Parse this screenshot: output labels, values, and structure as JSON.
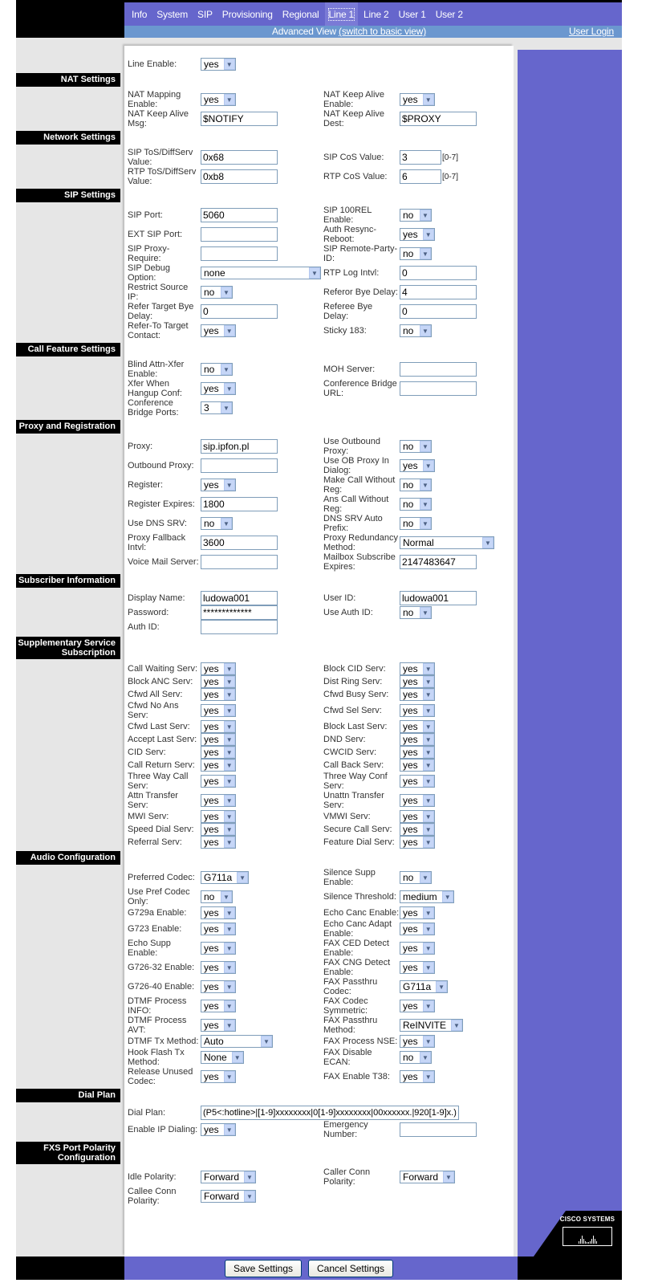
{
  "nav": {
    "tabs": [
      "Info",
      "System",
      "SIP",
      "Provisioning",
      "Regional",
      "Line 1",
      "Line 2",
      "User 1",
      "User 2"
    ],
    "active": "Line 1"
  },
  "subbar": {
    "view_label": "Advanced View",
    "switch_link": "(switch to basic view)",
    "login_link": "User Login"
  },
  "brand": {
    "logo_text": "Cisco Systems"
  },
  "colors": {
    "nav": "#6666cc",
    "subbar": "#6b97cf",
    "section_header": "#000000",
    "background": "#e6e6e6"
  },
  "sections": [
    {
      "title": "",
      "rows": [
        {
          "left": {
            "label": "Line Enable:",
            "type": "select",
            "value": "yes"
          }
        }
      ]
    },
    {
      "title": "NAT Settings",
      "rows": [
        {
          "left": {
            "label": "NAT Mapping Enable:",
            "type": "select",
            "value": "yes"
          },
          "right": {
            "label": "NAT Keep Alive Enable:",
            "type": "select",
            "value": "yes"
          }
        },
        {
          "left": {
            "label": "NAT Keep Alive Msg:",
            "type": "text",
            "value": "$NOTIFY"
          },
          "right": {
            "label": "NAT Keep Alive Dest:",
            "type": "text",
            "value": "$PROXY"
          }
        }
      ]
    },
    {
      "title": "Network Settings",
      "rows": [
        {
          "left": {
            "label": "SIP ToS/DiffServ Value:",
            "type": "text",
            "value": "0x68"
          },
          "right": {
            "label": "SIP CoS Value:",
            "type": "text",
            "value": "3",
            "hint": "[0-7]"
          }
        },
        {
          "left": {
            "label": "RTP ToS/DiffServ Value:",
            "type": "text",
            "value": "0xb8"
          },
          "right": {
            "label": "RTP CoS Value:",
            "type": "text",
            "value": "6",
            "hint": "[0-7]"
          }
        }
      ]
    },
    {
      "title": "SIP Settings",
      "rows": [
        {
          "left": {
            "label": "SIP Port:",
            "type": "text",
            "value": "5060"
          },
          "right": {
            "label": "SIP 100REL Enable:",
            "type": "select",
            "value": "no"
          }
        },
        {
          "left": {
            "label": "EXT SIP Port:",
            "type": "text",
            "value": ""
          },
          "right": {
            "label": "Auth Resync-Reboot:",
            "type": "select",
            "value": "yes"
          }
        },
        {
          "left": {
            "label": "SIP Proxy-Require:",
            "type": "text",
            "value": ""
          },
          "right": {
            "label": "SIP Remote-Party-ID:",
            "type": "select",
            "value": "no"
          }
        },
        {
          "left": {
            "label": "SIP Debug Option:",
            "type": "select",
            "value": "none"
          },
          "right": {
            "label": "RTP Log Intvl:",
            "type": "text",
            "value": "0"
          }
        },
        {
          "left": {
            "label": "Restrict Source IP:",
            "type": "select",
            "value": "no"
          },
          "right": {
            "label": "Referor Bye Delay:",
            "type": "text",
            "value": "4"
          }
        },
        {
          "left": {
            "label": "Refer Target Bye Delay:",
            "type": "text",
            "value": "0"
          },
          "right": {
            "label": "Referee Bye Delay:",
            "type": "text",
            "value": "0"
          }
        },
        {
          "left": {
            "label": "Refer-To Target Contact:",
            "type": "select",
            "value": "yes"
          },
          "right": {
            "label": "Sticky 183:",
            "type": "select",
            "value": "no"
          }
        }
      ]
    },
    {
      "title": "Call Feature Settings",
      "rows": [
        {
          "left": {
            "label": "Blind Attn-Xfer Enable:",
            "type": "select",
            "value": "no"
          },
          "right": {
            "label": "MOH Server:",
            "type": "text",
            "value": ""
          }
        },
        {
          "left": {
            "label": "Xfer When Hangup Conf:",
            "type": "select",
            "value": "yes"
          },
          "right": {
            "label": "Conference Bridge URL:",
            "type": "text",
            "value": ""
          }
        },
        {
          "left": {
            "label": "Conference Bridge Ports:",
            "type": "select",
            "value": "3"
          }
        }
      ]
    },
    {
      "title": "Proxy and Registration",
      "rows": [
        {
          "left": {
            "label": "Proxy:",
            "type": "text",
            "value": "sip.ipfon.pl"
          },
          "right": {
            "label": "Use Outbound Proxy:",
            "type": "select",
            "value": "no"
          }
        },
        {
          "left": {
            "label": "Outbound Proxy:",
            "type": "text",
            "value": ""
          },
          "right": {
            "label": "Use OB Proxy In Dialog:",
            "type": "select",
            "value": "yes"
          }
        },
        {
          "left": {
            "label": "Register:",
            "type": "select",
            "value": "yes"
          },
          "right": {
            "label": "Make Call Without Reg:",
            "type": "select",
            "value": "no"
          }
        },
        {
          "left": {
            "label": "Register Expires:",
            "type": "text",
            "value": "1800"
          },
          "right": {
            "label": "Ans Call Without Reg:",
            "type": "select",
            "value": "no"
          }
        },
        {
          "left": {
            "label": "Use DNS SRV:",
            "type": "select",
            "value": "no"
          },
          "right": {
            "label": "DNS SRV Auto Prefix:",
            "type": "select",
            "value": "no"
          }
        },
        {
          "left": {
            "label": "Proxy Fallback Intvl:",
            "type": "text",
            "value": "3600"
          },
          "right": {
            "label": "Proxy Redundancy Method:",
            "type": "select",
            "value": "Normal"
          }
        },
        {
          "left": {
            "label": "Voice Mail Server:",
            "type": "text",
            "value": ""
          },
          "right": {
            "label": "Mailbox Subscribe Expires:",
            "type": "text",
            "value": "2147483647"
          }
        }
      ]
    },
    {
      "title": "Subscriber Information",
      "rows": [
        {
          "left": {
            "label": "Display Name:",
            "type": "text",
            "value": "ludowa001"
          },
          "right": {
            "label": "User ID:",
            "type": "text",
            "value": "ludowa001"
          }
        },
        {
          "left": {
            "label": "Password:",
            "type": "password",
            "value": "*************"
          },
          "right": {
            "label": "Use Auth ID:",
            "type": "select",
            "value": "no"
          }
        },
        {
          "left": {
            "label": "Auth ID:",
            "type": "text",
            "value": ""
          }
        }
      ]
    },
    {
      "title": "Supplementary Service Subscription",
      "rows": [
        {
          "left": {
            "label": "Call Waiting Serv:",
            "type": "select",
            "value": "yes"
          },
          "right": {
            "label": "Block CID Serv:",
            "type": "select",
            "value": "yes"
          }
        },
        {
          "left": {
            "label": "Block ANC Serv:",
            "type": "select",
            "value": "yes"
          },
          "right": {
            "label": "Dist Ring Serv:",
            "type": "select",
            "value": "yes"
          }
        },
        {
          "left": {
            "label": "Cfwd All Serv:",
            "type": "select",
            "value": "yes"
          },
          "right": {
            "label": "Cfwd Busy Serv:",
            "type": "select",
            "value": "yes"
          }
        },
        {
          "left": {
            "label": "Cfwd No Ans Serv:",
            "type": "select",
            "value": "yes"
          },
          "right": {
            "label": "Cfwd Sel Serv:",
            "type": "select",
            "value": "yes"
          }
        },
        {
          "left": {
            "label": "Cfwd Last Serv:",
            "type": "select",
            "value": "yes"
          },
          "right": {
            "label": "Block Last Serv:",
            "type": "select",
            "value": "yes"
          }
        },
        {
          "left": {
            "label": "Accept Last Serv:",
            "type": "select",
            "value": "yes"
          },
          "right": {
            "label": "DND Serv:",
            "type": "select",
            "value": "yes"
          }
        },
        {
          "left": {
            "label": "CID Serv:",
            "type": "select",
            "value": "yes"
          },
          "right": {
            "label": "CWCID Serv:",
            "type": "select",
            "value": "yes"
          }
        },
        {
          "left": {
            "label": "Call Return Serv:",
            "type": "select",
            "value": "yes"
          },
          "right": {
            "label": "Call Back Serv:",
            "type": "select",
            "value": "yes"
          }
        },
        {
          "left": {
            "label": "Three Way Call Serv:",
            "type": "select",
            "value": "yes"
          },
          "right": {
            "label": "Three Way Conf Serv:",
            "type": "select",
            "value": "yes"
          }
        },
        {
          "left": {
            "label": "Attn Transfer Serv:",
            "type": "select",
            "value": "yes"
          },
          "right": {
            "label": "Unattn Transfer Serv:",
            "type": "select",
            "value": "yes"
          }
        },
        {
          "left": {
            "label": "MWI Serv:",
            "type": "select",
            "value": "yes"
          },
          "right": {
            "label": "VMWI Serv:",
            "type": "select",
            "value": "yes"
          }
        },
        {
          "left": {
            "label": "Speed Dial Serv:",
            "type": "select",
            "value": "yes"
          },
          "right": {
            "label": "Secure Call Serv:",
            "type": "select",
            "value": "yes"
          }
        },
        {
          "left": {
            "label": "Referral Serv:",
            "type": "select",
            "value": "yes"
          },
          "right": {
            "label": "Feature Dial Serv:",
            "type": "select",
            "value": "yes"
          }
        }
      ]
    },
    {
      "title": "Audio Configuration",
      "rows": [
        {
          "left": {
            "label": "Preferred Codec:",
            "type": "select",
            "value": "G711a"
          },
          "right": {
            "label": "Silence Supp Enable:",
            "type": "select",
            "value": "no"
          }
        },
        {
          "left": {
            "label": "Use Pref Codec Only:",
            "type": "select",
            "value": "no"
          },
          "right": {
            "label": "Silence Threshold:",
            "type": "select",
            "value": "medium"
          }
        },
        {
          "left": {
            "label": "G729a Enable:",
            "type": "select",
            "value": "yes"
          },
          "right": {
            "label": "Echo Canc Enable:",
            "type": "select",
            "value": "yes"
          }
        },
        {
          "left": {
            "label": "G723 Enable:",
            "type": "select",
            "value": "yes"
          },
          "right": {
            "label": "Echo Canc Adapt Enable:",
            "type": "select",
            "value": "yes"
          }
        },
        {
          "left": {
            "label": "Echo Supp Enable:",
            "type": "select",
            "value": "yes"
          },
          "right": {
            "label": "FAX CED Detect Enable:",
            "type": "select",
            "value": "yes"
          }
        },
        {
          "left": {
            "label": "G726-32 Enable:",
            "type": "select",
            "value": "yes"
          },
          "right": {
            "label": "FAX CNG Detect Enable:",
            "type": "select",
            "value": "yes"
          }
        },
        {
          "left": {
            "label": "G726-40 Enable:",
            "type": "select",
            "value": "yes"
          },
          "right": {
            "label": "FAX Passthru Codec:",
            "type": "select",
            "value": "G711a"
          }
        },
        {
          "left": {
            "label": "DTMF Process INFO:",
            "type": "select",
            "value": "yes"
          },
          "right": {
            "label": "FAX Codec Symmetric:",
            "type": "select",
            "value": "yes"
          }
        },
        {
          "left": {
            "label": "DTMF Process AVT:",
            "type": "select",
            "value": "yes"
          },
          "right": {
            "label": "FAX Passthru Method:",
            "type": "select",
            "value": "ReINVITE"
          }
        },
        {
          "left": {
            "label": "DTMF Tx Method:",
            "type": "select",
            "value": "Auto"
          },
          "right": {
            "label": "FAX Process NSE:",
            "type": "select",
            "value": "yes"
          }
        },
        {
          "left": {
            "label": "Hook Flash Tx Method:",
            "type": "select",
            "value": "None"
          },
          "right": {
            "label": "FAX Disable ECAN:",
            "type": "select",
            "value": "no"
          }
        },
        {
          "left": {
            "label": "Release Unused Codec:",
            "type": "select",
            "value": "yes"
          },
          "right": {
            "label": "FAX Enable T38:",
            "type": "select",
            "value": "yes"
          }
        }
      ]
    },
    {
      "title": "Dial Plan",
      "rows": [
        {
          "left": {
            "label": "Dial Plan:",
            "type": "text",
            "value": "(P5<:hotline>|[1-9]xxxxxxxx|0[1-9]xxxxxxxx|00xxxxxx.|920[1-9]x.)"
          }
        },
        {
          "left": {
            "label": "Enable IP Dialing:",
            "type": "select",
            "value": "yes"
          },
          "right": {
            "label": "Emergency Number:",
            "type": "text",
            "value": ""
          }
        }
      ]
    },
    {
      "title": "FXS Port Polarity Configuration",
      "rows": [
        {
          "left": {
            "label": "Idle Polarity:",
            "type": "select",
            "value": "Forward"
          },
          "right": {
            "label": "Caller Conn Polarity:",
            "type": "select",
            "value": "Forward"
          }
        },
        {
          "left": {
            "label": "Callee Conn Polarity:",
            "type": "select",
            "value": "Forward"
          }
        }
      ]
    }
  ],
  "footer": {
    "save_label": "Save Settings",
    "cancel_label": "Cancel Settings"
  }
}
